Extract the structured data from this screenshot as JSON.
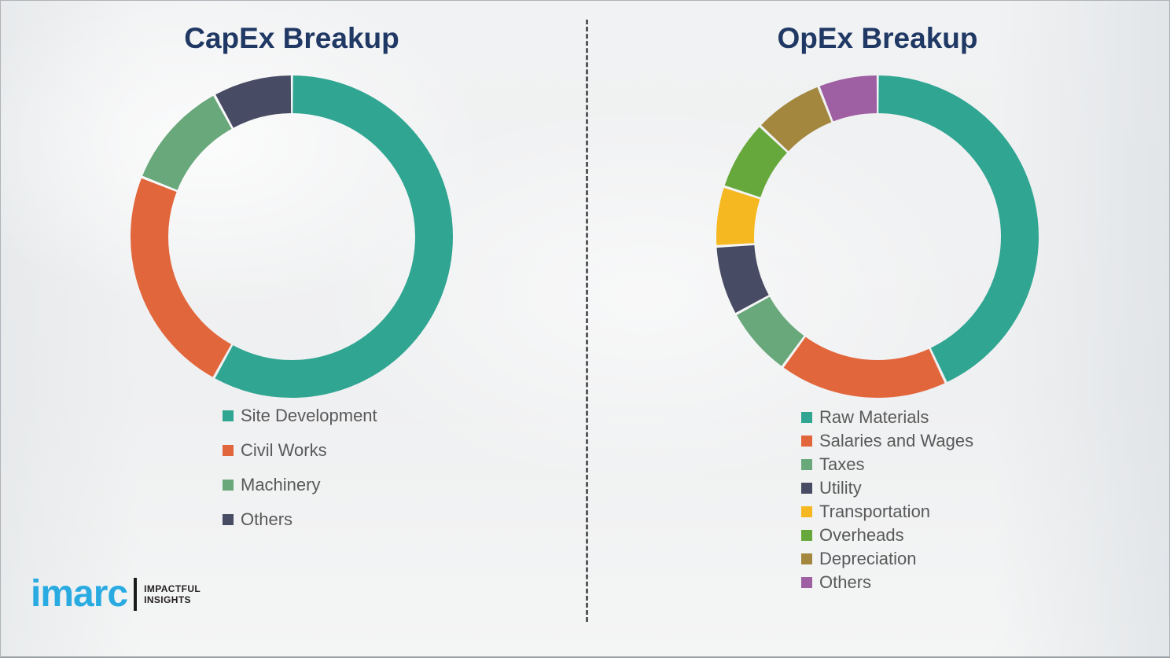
{
  "chart_data": [
    {
      "type": "pie",
      "donut": true,
      "title": "CapEx Breakup",
      "labels": [
        "Site Development",
        "Civil Works",
        "Machinery",
        "Others"
      ],
      "values": [
        58,
        23,
        11,
        8
      ],
      "unit": "%",
      "colors": [
        "#2FA592",
        "#E2663C",
        "#68A87B",
        "#474B63"
      ],
      "start_angle_deg": 0,
      "direction": "clockwise",
      "legend_position": "below-chart-left",
      "data_labels_shown": false
    },
    {
      "type": "pie",
      "donut": true,
      "title": "OpEx Breakup",
      "labels": [
        "Raw Materials",
        "Salaries and Wages",
        "Taxes",
        "Utility",
        "Transportation",
        "Overheads",
        "Depreciation",
        "Others"
      ],
      "values": [
        43,
        17,
        7,
        7,
        6,
        7,
        7,
        6
      ],
      "unit": "%",
      "colors": [
        "#2FA592",
        "#E2663C",
        "#68A87B",
        "#474B63",
        "#F6B821",
        "#66A83B",
        "#A3873F",
        "#9E5FA3"
      ],
      "start_angle_deg": 0,
      "direction": "clockwise",
      "legend_position": "below-chart-left",
      "data_labels_shown": false
    }
  ],
  "logo": {
    "brand": "imarc",
    "tagline_line1": "IMPACTFUL",
    "tagline_line2": "INSIGHTS",
    "brand_color": "#29ABE2"
  },
  "theme": {
    "title_color": "#1F3864",
    "legend_text_color": "#595959",
    "divider_color": "#58595B",
    "background_color": "#F0F1F2"
  }
}
